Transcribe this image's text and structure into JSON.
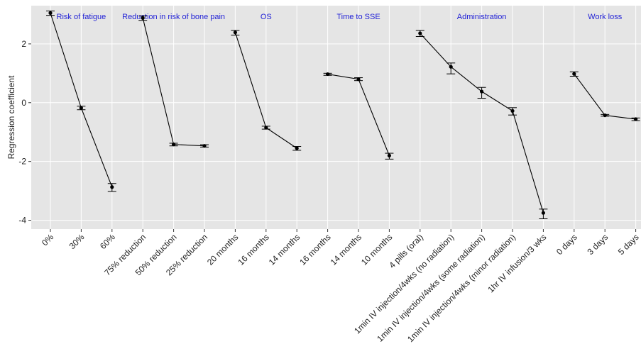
{
  "chart_data": {
    "type": "line",
    "ylabel": "Regression coefficient",
    "ylim": [
      -4.3,
      3.3
    ],
    "yticks": [
      -4,
      -2,
      0,
      2
    ],
    "grid": true,
    "colors": {
      "panel": "#e5e5e5",
      "grid": "#ffffff",
      "line": "#000000",
      "facet_label": "#1f1fd6"
    },
    "groups": [
      {
        "name": "Risk of fatigue",
        "categories": [
          "0%",
          "30%",
          "60%"
        ],
        "values": [
          3.05,
          -0.18,
          -2.87
        ],
        "lower": [
          2.97,
          -0.24,
          -3.02
        ],
        "upper": [
          3.12,
          -0.12,
          -2.75
        ]
      },
      {
        "name": "Reduction in risk of bone pain",
        "categories": [
          "75% reduction",
          "50% reduction",
          "25% reduction"
        ],
        "values": [
          2.88,
          -1.42,
          -1.47
        ],
        "lower": [
          2.8,
          -1.47,
          -1.51
        ],
        "upper": [
          2.95,
          -1.38,
          -1.43
        ]
      },
      {
        "name": "OS",
        "categories": [
          "20 months",
          "16 months",
          "14 months"
        ],
        "values": [
          2.39,
          -0.85,
          -1.55
        ],
        "lower": [
          2.3,
          -0.9,
          -1.62
        ],
        "upper": [
          2.46,
          -0.8,
          -1.49
        ]
      },
      {
        "name": "Time to SSE",
        "categories": [
          "16 months",
          "14 months",
          "10 months"
        ],
        "values": [
          0.97,
          0.8,
          -1.8
        ],
        "lower": [
          0.93,
          0.75,
          -1.92
        ],
        "upper": [
          1.0,
          0.85,
          -1.72
        ]
      },
      {
        "name": "Administration",
        "categories": [
          "4 pills (oral)",
          "1min IV injection/4wks (no radiation)",
          "1min IV injection/4wks (some radiation)",
          "1min IV injection/4wks (minor radiation)",
          "1hr IV infusion/3 wks"
        ],
        "values": [
          2.36,
          1.22,
          0.38,
          -0.28,
          -3.75
        ],
        "lower": [
          2.25,
          0.98,
          0.15,
          -0.42,
          -3.95
        ],
        "upper": [
          2.46,
          1.35,
          0.52,
          -0.17,
          -3.62
        ]
      },
      {
        "name": "Work loss",
        "categories": [
          "0 days",
          "3 days",
          "5 days"
        ],
        "values": [
          0.98,
          -0.43,
          -0.56
        ],
        "lower": [
          0.9,
          -0.46,
          -0.61
        ],
        "upper": [
          1.05,
          -0.4,
          -0.52
        ]
      }
    ]
  }
}
